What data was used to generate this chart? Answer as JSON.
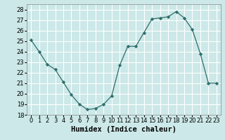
{
  "x": [
    0,
    1,
    2,
    3,
    4,
    5,
    6,
    7,
    8,
    9,
    10,
    11,
    12,
    13,
    14,
    15,
    16,
    17,
    18,
    19,
    20,
    21,
    22,
    23
  ],
  "y": [
    25.1,
    24.0,
    22.8,
    22.3,
    21.1,
    19.9,
    19.0,
    18.5,
    18.6,
    19.0,
    19.8,
    22.7,
    24.5,
    24.5,
    25.8,
    27.1,
    27.2,
    27.3,
    27.8,
    27.2,
    26.1,
    23.8,
    21.0,
    21.0
  ],
  "xlabel": "Humidex (Indice chaleur)",
  "xlim": [
    -0.5,
    23.5
  ],
  "ylim": [
    18,
    28.5
  ],
  "yticks": [
    18,
    19,
    20,
    21,
    22,
    23,
    24,
    25,
    26,
    27,
    28
  ],
  "xticks": [
    0,
    1,
    2,
    3,
    4,
    5,
    6,
    7,
    8,
    9,
    10,
    11,
    12,
    13,
    14,
    15,
    16,
    17,
    18,
    19,
    20,
    21,
    22,
    23
  ],
  "line_color": "#2e6e6a",
  "marker": "D",
  "marker_size": 2.2,
  "bg_color": "#cce8e8",
  "grid_color": "#ffffff",
  "tick_fontsize": 6,
  "xlabel_fontsize": 7.5
}
